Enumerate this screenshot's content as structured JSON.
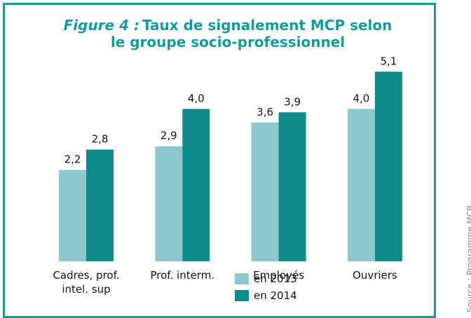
{
  "chart_data": {
    "type": "bar",
    "title_prefix": "Figure 4 :",
    "title": "Taux de signalement MCP selon le groupe socio-professionnel",
    "categories": [
      "Cadres, prof. intel. sup",
      "Prof. interm.",
      "Employés",
      "Ouvriers"
    ],
    "series": [
      {
        "name": "en 2013",
        "color": "#8ec8cc",
        "values": [
          2.2,
          2.9,
          3.6,
          4.0
        ],
        "value_labels": [
          "2,2",
          "2,9",
          "3,6",
          "4,0"
        ]
      },
      {
        "name": "en 2014",
        "color": "#0e8a8a",
        "values": [
          2.8,
          4.0,
          3.9,
          5.1
        ],
        "value_labels": [
          "2,8",
          "4,0",
          "3,9",
          "5,1"
        ]
      }
    ],
    "ylim": [
      -0.5,
      5.5
    ],
    "source": "Source : Programme MCP"
  }
}
